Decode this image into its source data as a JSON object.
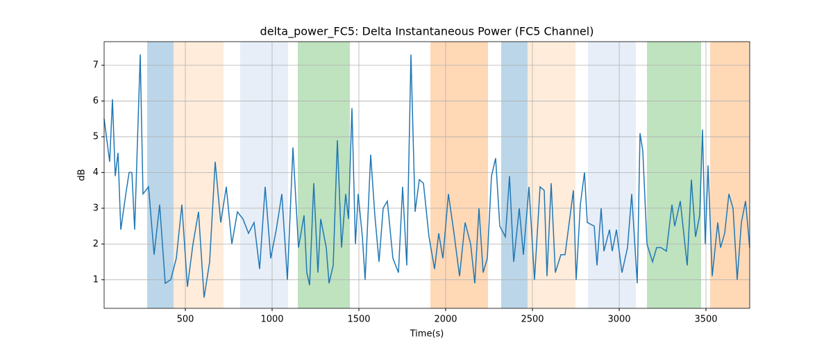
{
  "chart_data": {
    "type": "line",
    "title": "delta_power_FC5: Delta Instantaneous Power (FC5 Channel)",
    "x_label": "Time(s)",
    "y_label": "dB",
    "xlim": [
      32,
      3752
    ],
    "ylim": [
      0.2,
      7.66
    ],
    "xticks": [
      500,
      1000,
      1500,
      2000,
      2500,
      3000,
      3500
    ],
    "yticks": [
      1,
      2,
      3,
      4,
      5,
      6,
      7
    ],
    "grid": true,
    "color": "#1f77b4",
    "spans": [
      {
        "start": 280,
        "end": 432,
        "color": "rgba(31,119,180,0.3)"
      },
      {
        "start": 432,
        "end": 720,
        "color": "rgba(255,127,14,0.15)"
      },
      {
        "start": 816,
        "end": 1092,
        "color": "rgba(174,199,232,0.3)"
      },
      {
        "start": 1148,
        "end": 1448,
        "color": "rgba(44,160,44,0.3)"
      },
      {
        "start": 1912,
        "end": 2244,
        "color": "rgba(255,127,14,0.3)"
      },
      {
        "start": 2320,
        "end": 2472,
        "color": "rgba(31,119,180,0.3)"
      },
      {
        "start": 2472,
        "end": 2748,
        "color": "rgba(255,127,14,0.15)"
      },
      {
        "start": 2820,
        "end": 3096,
        "color": "rgba(174,199,232,0.3)"
      },
      {
        "start": 3160,
        "end": 3472,
        "color": "rgba(44,160,44,0.3)"
      },
      {
        "start": 3524,
        "end": 3752,
        "color": "rgba(255,127,14,0.3)"
      }
    ],
    "x": [
      32,
      64,
      80,
      96,
      112,
      128,
      160,
      176,
      192,
      208,
      240,
      256,
      288,
      320,
      352,
      384,
      416,
      448,
      480,
      512,
      544,
      576,
      608,
      640,
      672,
      704,
      736,
      768,
      800,
      832,
      864,
      896,
      928,
      960,
      992,
      1024,
      1056,
      1088,
      1120,
      1152,
      1184,
      1200,
      1216,
      1240,
      1264,
      1280,
      1312,
      1328,
      1352,
      1376,
      1400,
      1424,
      1440,
      1460,
      1480,
      1496,
      1520,
      1536,
      1568,
      1592,
      1616,
      1640,
      1664,
      1696,
      1728,
      1752,
      1776,
      1800,
      1824,
      1848,
      1872,
      1904,
      1936,
      1960,
      1984,
      2016,
      2048,
      2080,
      2112,
      2144,
      2168,
      2192,
      2216,
      2240,
      2264,
      2288,
      2312,
      2344,
      2368,
      2392,
      2424,
      2448,
      2480,
      2512,
      2544,
      2568,
      2584,
      2608,
      2632,
      2664,
      2688,
      2720,
      2736,
      2752,
      2776,
      2800,
      2816,
      2856,
      2872,
      2896,
      2912,
      2944,
      2960,
      2984,
      3016,
      3048,
      3072,
      3104,
      3120,
      3136,
      3160,
      3192,
      3216,
      3240,
      3272,
      3304,
      3320,
      3352,
      3392,
      3416,
      3440,
      3464,
      3480,
      3496,
      3512,
      3536,
      3568,
      3584,
      3608,
      3632,
      3656,
      3680,
      3704,
      3728,
      3752
    ],
    "values": [
      5.5,
      4.3,
      6.05,
      3.9,
      4.55,
      2.4,
      3.5,
      4.0,
      4.0,
      2.4,
      7.3,
      3.4,
      3.6,
      1.7,
      3.1,
      0.9,
      1.0,
      1.6,
      3.1,
      0.8,
      2.0,
      2.9,
      0.5,
      1.5,
      4.3,
      2.6,
      3.6,
      2.0,
      2.9,
      2.7,
      2.3,
      2.6,
      1.3,
      3.6,
      1.6,
      2.4,
      3.4,
      1.0,
      4.7,
      1.9,
      2.8,
      1.2,
      0.85,
      3.7,
      1.2,
      2.7,
      1.9,
      0.9,
      1.4,
      4.9,
      1.9,
      3.4,
      2.7,
      5.8,
      2.0,
      3.4,
      2.2,
      1.0,
      4.5,
      2.8,
      1.5,
      3.0,
      3.2,
      1.6,
      1.2,
      3.6,
      1.4,
      7.3,
      2.9,
      3.8,
      3.7,
      2.2,
      1.3,
      2.3,
      1.6,
      3.4,
      2.3,
      1.1,
      2.6,
      2.0,
      0.9,
      3.0,
      1.2,
      1.6,
      3.9,
      4.4,
      2.5,
      2.2,
      3.9,
      1.5,
      3.0,
      1.7,
      3.6,
      1.0,
      3.6,
      3.5,
      1.1,
      3.7,
      1.2,
      1.7,
      1.7,
      2.9,
      3.5,
      1.0,
      3.1,
      4.0,
      2.6,
      2.5,
      1.4,
      3.0,
      1.8,
      2.4,
      1.8,
      2.4,
      1.2,
      1.9,
      3.4,
      0.9,
      5.1,
      4.6,
      2.0,
      1.5,
      1.9,
      1.9,
      1.8,
      3.1,
      2.5,
      3.2,
      1.4,
      3.8,
      2.2,
      2.8,
      5.2,
      2.0,
      4.2,
      1.1,
      2.6,
      1.9,
      2.3,
      3.4,
      3.0,
      1.0,
      2.6,
      3.2,
      1.9
    ]
  }
}
